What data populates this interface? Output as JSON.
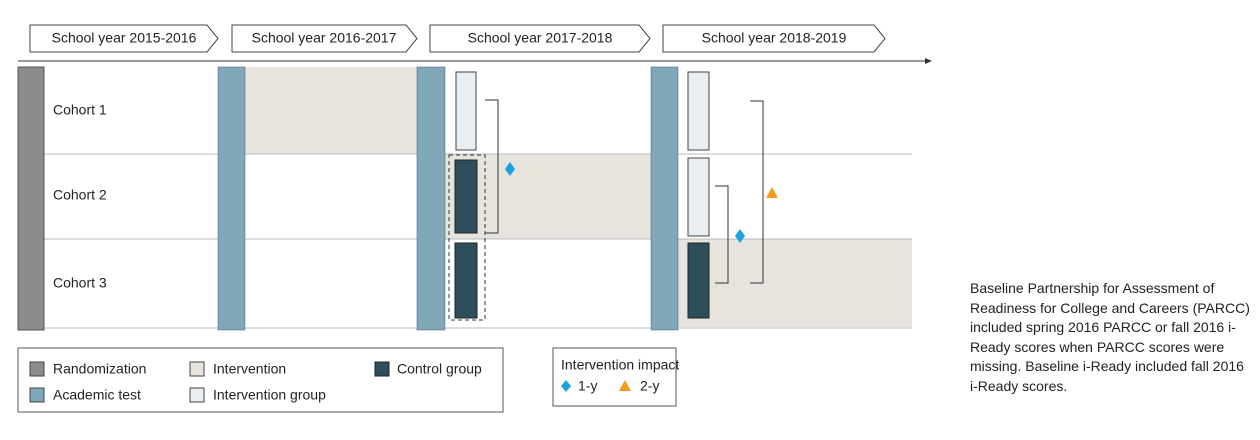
{
  "timeline": {
    "years": [
      "School year 2015-2016",
      "School year 2016-2017",
      "School year 2017-2018",
      "School year 2018-2019"
    ]
  },
  "cohorts": [
    "Cohort 1",
    "Cohort 2",
    "Cohort 3"
  ],
  "legend": {
    "items": [
      "Randomization",
      "Academic test",
      "Intervention",
      "Intervention group",
      "Control group"
    ]
  },
  "impact_legend": {
    "title": "Intervention impact",
    "items": [
      "1-y",
      "2-y"
    ]
  },
  "caption": "Baseline Partnership for Assessment of Readiness for College and Careers (PARCC) included spring 2016 PARCC or fall 2016 i-Ready scores when PARCC scores were missing. Baseline i-Ready included fall 2016 i-Ready scores."
}
